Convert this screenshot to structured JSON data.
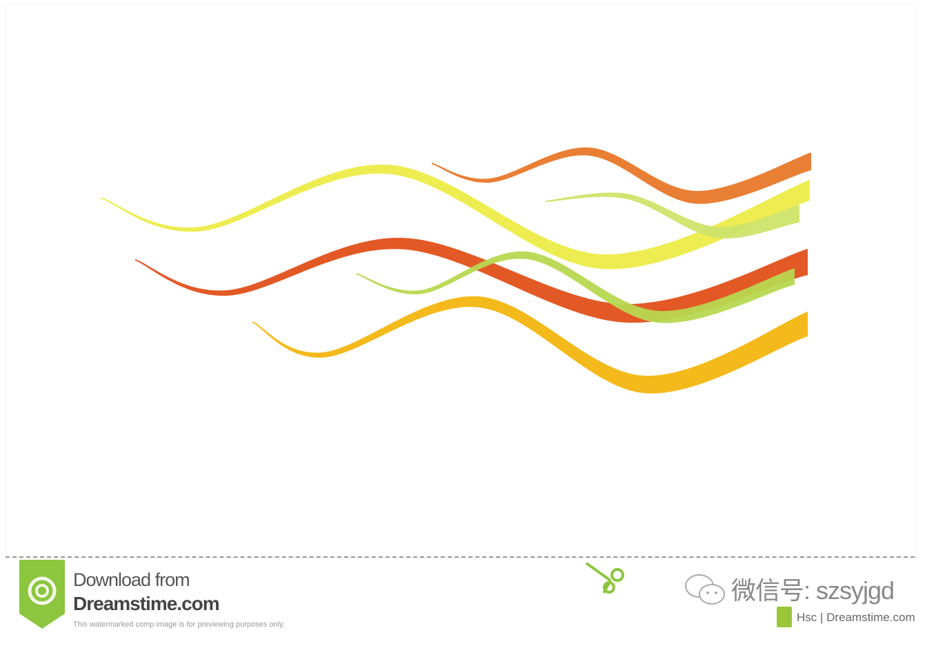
{
  "ribbons": [
    {
      "name": "light-yellow-ribbon",
      "color": "#ecec48"
    },
    {
      "name": "orange-ribbon-top",
      "color": "#e8782a"
    },
    {
      "name": "light-green-ribbon",
      "color": "#cfe46a"
    },
    {
      "name": "red-orange-ribbon",
      "color": "#e0501a"
    },
    {
      "name": "green-ribbon",
      "color": "#b8d850"
    },
    {
      "name": "golden-ribbon",
      "color": "#f3b50e"
    }
  ],
  "footer": {
    "download_line1": "Download from",
    "download_line2": "Dreamstime.com",
    "disclaimer": "This watermarked comp image is for previewing purposes only.",
    "wechat_label": "微信号: szsyjgd",
    "credit": "Hsc | Dreamstime.com",
    "brand_color": "#8cc63f"
  }
}
